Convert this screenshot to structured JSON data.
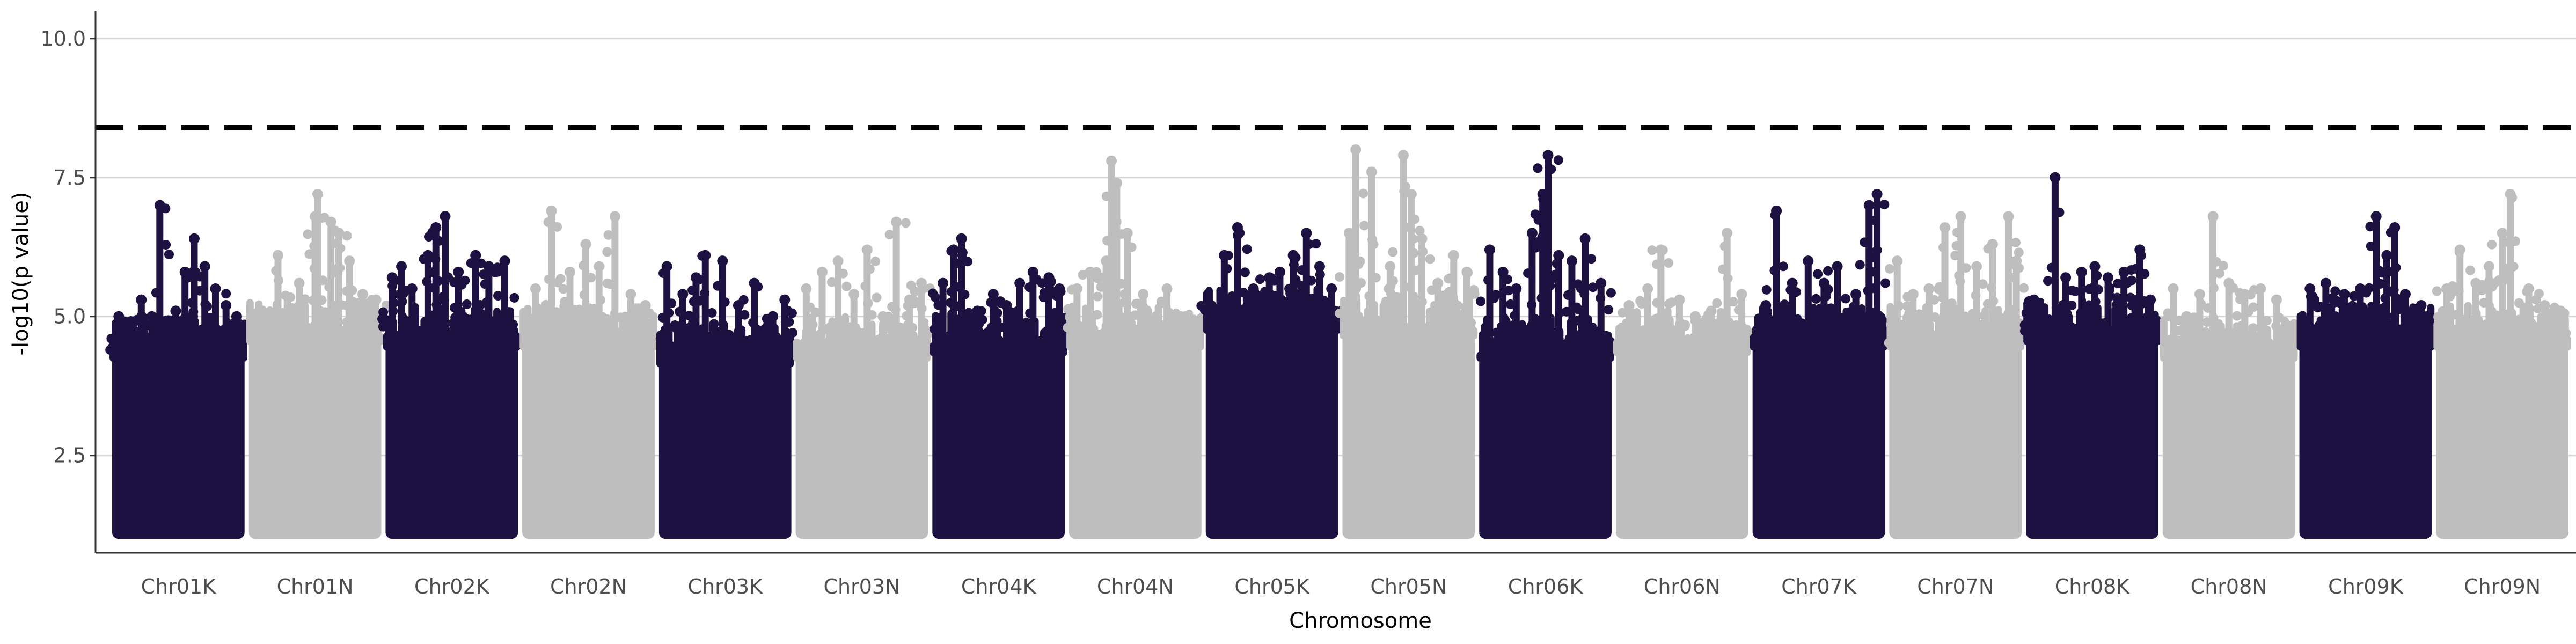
{
  "chart_data": {
    "type": "scatter",
    "title": "",
    "xlabel": "Chromosome",
    "ylabel": "-log10(p value)",
    "ylim": [
      0.75,
      10.5
    ],
    "y_ticks": [
      "2.5",
      "5.0",
      "7.5",
      "10.0"
    ],
    "y_tick_values": [
      2.5,
      5.0,
      7.5,
      10.0
    ],
    "grid": "horizontal major lines",
    "threshold": {
      "value": 8.4,
      "style": "dashed",
      "color": "#000000"
    },
    "colors": {
      "dark": "#1d1142",
      "light": "#bebebe"
    },
    "categories": [
      "Chr01K",
      "Chr01N",
      "Chr02K",
      "Chr02N",
      "Chr03K",
      "Chr03N",
      "Chr04K",
      "Chr04N",
      "Chr05K",
      "Chr05N",
      "Chr06K",
      "Chr06N",
      "Chr07K",
      "Chr07N",
      "Chr08K",
      "Chr08N",
      "Chr09K",
      "Chr09N"
    ],
    "series": [
      {
        "category": "Chr01K",
        "color": "dark",
        "dense_top": 4.3,
        "peaks": [
          [
            0.05,
            5.0
          ],
          [
            0.1,
            4.9
          ],
          [
            0.22,
            5.3
          ],
          [
            0.3,
            5.0
          ],
          [
            0.36,
            7.0
          ],
          [
            0.48,
            5.1
          ],
          [
            0.55,
            5.8
          ],
          [
            0.62,
            6.4
          ],
          [
            0.7,
            5.9
          ],
          [
            0.78,
            5.5
          ],
          [
            0.86,
            5.2
          ],
          [
            0.94,
            5.0
          ]
        ]
      },
      {
        "category": "Chr01N",
        "color": "light",
        "dense_top": 4.6,
        "peaks": [
          [
            0.1,
            5.1
          ],
          [
            0.22,
            6.1
          ],
          [
            0.38,
            5.6
          ],
          [
            0.5,
            6.8
          ],
          [
            0.52,
            7.2
          ],
          [
            0.62,
            6.7
          ],
          [
            0.68,
            6.5
          ],
          [
            0.76,
            6.0
          ],
          [
            0.86,
            5.4
          ],
          [
            0.96,
            5.3
          ]
        ]
      },
      {
        "category": "Chr02K",
        "color": "dark",
        "dense_top": 4.5,
        "peaks": [
          [
            0.05,
            5.7
          ],
          [
            0.12,
            5.9
          ],
          [
            0.2,
            5.5
          ],
          [
            0.32,
            6.1
          ],
          [
            0.38,
            6.6
          ],
          [
            0.45,
            6.8
          ],
          [
            0.55,
            5.8
          ],
          [
            0.68,
            6.1
          ],
          [
            0.78,
            5.9
          ],
          [
            0.9,
            6.0
          ]
        ]
      },
      {
        "category": "Chr02N",
        "color": "light",
        "dense_top": 4.5,
        "peaks": [
          [
            0.1,
            5.5
          ],
          [
            0.22,
            6.9
          ],
          [
            0.36,
            5.8
          ],
          [
            0.48,
            6.3
          ],
          [
            0.58,
            5.9
          ],
          [
            0.7,
            6.8
          ],
          [
            0.82,
            5.4
          ],
          [
            0.93,
            5.2
          ]
        ]
      },
      {
        "category": "Chr03K",
        "color": "dark",
        "dense_top": 4.2,
        "peaks": [
          [
            0.06,
            5.9
          ],
          [
            0.18,
            5.4
          ],
          [
            0.28,
            5.7
          ],
          [
            0.35,
            6.1
          ],
          [
            0.48,
            6.0
          ],
          [
            0.6,
            5.2
          ],
          [
            0.72,
            5.6
          ],
          [
            0.86,
            5.0
          ],
          [
            0.95,
            5.3
          ]
        ]
      },
      {
        "category": "Chr03N",
        "color": "light",
        "dense_top": 4.3,
        "peaks": [
          [
            0.08,
            5.5
          ],
          [
            0.2,
            5.8
          ],
          [
            0.32,
            6.0
          ],
          [
            0.44,
            5.4
          ],
          [
            0.54,
            6.2
          ],
          [
            0.66,
            5.0
          ],
          [
            0.76,
            6.7
          ],
          [
            0.86,
            5.3
          ],
          [
            0.95,
            5.6
          ]
        ]
      },
      {
        "category": "Chr04K",
        "color": "dark",
        "dense_top": 4.4,
        "peaks": [
          [
            0.08,
            5.6
          ],
          [
            0.16,
            6.2
          ],
          [
            0.22,
            6.4
          ],
          [
            0.34,
            5.1
          ],
          [
            0.46,
            5.4
          ],
          [
            0.56,
            5.2
          ],
          [
            0.66,
            5.6
          ],
          [
            0.76,
            5.8
          ],
          [
            0.88,
            5.7
          ],
          [
            0.96,
            5.5
          ]
        ]
      },
      {
        "category": "Chr04N",
        "color": "light",
        "dense_top": 4.5,
        "peaks": [
          [
            0.06,
            5.5
          ],
          [
            0.16,
            5.8
          ],
          [
            0.28,
            6.0
          ],
          [
            0.32,
            7.8
          ],
          [
            0.36,
            7.4
          ],
          [
            0.44,
            6.5
          ],
          [
            0.56,
            5.4
          ],
          [
            0.66,
            5.0
          ],
          [
            0.74,
            5.5
          ],
          [
            0.88,
            5.0
          ]
        ]
      },
      {
        "category": "Chr05K",
        "color": "dark",
        "dense_top": 4.8,
        "peaks": [
          [
            0.04,
            5.2
          ],
          [
            0.14,
            6.1
          ],
          [
            0.24,
            6.6
          ],
          [
            0.36,
            5.5
          ],
          [
            0.48,
            5.7
          ],
          [
            0.56,
            5.8
          ],
          [
            0.66,
            6.1
          ],
          [
            0.76,
            6.5
          ],
          [
            0.86,
            5.9
          ],
          [
            0.95,
            5.5
          ]
        ]
      },
      {
        "category": "Chr05N",
        "color": "light",
        "dense_top": 4.7,
        "peaks": [
          [
            0.05,
            6.5
          ],
          [
            0.1,
            8.0
          ],
          [
            0.22,
            7.6
          ],
          [
            0.36,
            5.9
          ],
          [
            0.46,
            7.9
          ],
          [
            0.52,
            7.2
          ],
          [
            0.6,
            6.4
          ],
          [
            0.72,
            5.6
          ],
          [
            0.84,
            6.1
          ],
          [
            0.94,
            5.8
          ]
        ]
      },
      {
        "category": "Chr06K",
        "color": "dark",
        "dense_top": 4.3,
        "peaks": [
          [
            0.08,
            6.2
          ],
          [
            0.18,
            5.8
          ],
          [
            0.28,
            5.5
          ],
          [
            0.4,
            6.5
          ],
          [
            0.48,
            7.2
          ],
          [
            0.52,
            7.9
          ],
          [
            0.6,
            6.1
          ],
          [
            0.7,
            6.0
          ],
          [
            0.8,
            6.4
          ],
          [
            0.92,
            5.6
          ]
        ]
      },
      {
        "category": "Chr06N",
        "color": "light",
        "dense_top": 4.4,
        "peaks": [
          [
            0.1,
            5.2
          ],
          [
            0.24,
            5.5
          ],
          [
            0.34,
            6.2
          ],
          [
            0.48,
            5.3
          ],
          [
            0.6,
            5.0
          ],
          [
            0.72,
            5.1
          ],
          [
            0.84,
            6.5
          ],
          [
            0.95,
            5.4
          ]
        ]
      },
      {
        "category": "Chr07K",
        "color": "dark",
        "dense_top": 4.5,
        "peaks": [
          [
            0.1,
            5.2
          ],
          [
            0.18,
            6.9
          ],
          [
            0.3,
            5.6
          ],
          [
            0.42,
            6.0
          ],
          [
            0.54,
            5.6
          ],
          [
            0.64,
            5.9
          ],
          [
            0.78,
            5.4
          ],
          [
            0.88,
            7.0
          ],
          [
            0.94,
            7.2
          ]
        ]
      },
      {
        "category": "Chr07N",
        "color": "light",
        "dense_top": 4.5,
        "peaks": [
          [
            0.06,
            6.0
          ],
          [
            0.18,
            5.4
          ],
          [
            0.3,
            5.5
          ],
          [
            0.42,
            6.6
          ],
          [
            0.54,
            6.8
          ],
          [
            0.66,
            5.9
          ],
          [
            0.78,
            6.3
          ],
          [
            0.9,
            6.8
          ],
          [
            0.96,
            6.0
          ]
        ]
      },
      {
        "category": "Chr08K",
        "color": "dark",
        "dense_top": 4.6,
        "peaks": [
          [
            0.06,
            5.3
          ],
          [
            0.22,
            7.5
          ],
          [
            0.3,
            5.7
          ],
          [
            0.42,
            5.8
          ],
          [
            0.52,
            5.9
          ],
          [
            0.62,
            5.7
          ],
          [
            0.74,
            5.8
          ],
          [
            0.86,
            6.2
          ],
          [
            0.94,
            5.3
          ]
        ]
      },
      {
        "category": "Chr08N",
        "color": "light",
        "dense_top": 4.3,
        "peaks": [
          [
            0.08,
            5.5
          ],
          [
            0.18,
            5.0
          ],
          [
            0.28,
            5.4
          ],
          [
            0.38,
            6.8
          ],
          [
            0.5,
            5.6
          ],
          [
            0.62,
            5.4
          ],
          [
            0.74,
            5.5
          ],
          [
            0.86,
            5.3
          ]
        ]
      },
      {
        "category": "Chr09K",
        "color": "dark",
        "dense_top": 4.5,
        "peaks": [
          [
            0.08,
            5.5
          ],
          [
            0.2,
            5.6
          ],
          [
            0.34,
            5.4
          ],
          [
            0.46,
            5.5
          ],
          [
            0.58,
            6.8
          ],
          [
            0.66,
            6.1
          ],
          [
            0.72,
            6.6
          ],
          [
            0.8,
            5.4
          ],
          [
            0.92,
            5.2
          ]
        ]
      },
      {
        "category": "Chr09N",
        "color": "light",
        "dense_top": 4.5,
        "peaks": [
          [
            0.08,
            5.5
          ],
          [
            0.18,
            6.2
          ],
          [
            0.3,
            5.6
          ],
          [
            0.4,
            5.9
          ],
          [
            0.5,
            6.5
          ],
          [
            0.56,
            7.2
          ],
          [
            0.7,
            5.5
          ],
          [
            0.82,
            5.2
          ],
          [
            0.94,
            5.1
          ]
        ]
      }
    ]
  }
}
